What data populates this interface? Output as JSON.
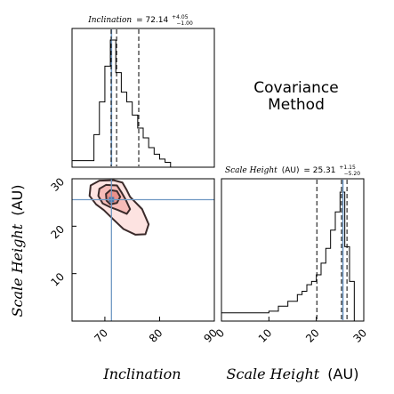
{
  "chart_data": [
    {
      "type": "histogram",
      "panel": "inclination-marginal",
      "title_param": "Inclination",
      "title_value": "= 72.14",
      "title_sup": "+4.05",
      "title_sub": "−1.00",
      "xlim": [
        64,
        90
      ],
      "median": 72.14,
      "quantiles": [
        71.14,
        76.19
      ],
      "truth": 71.2,
      "bins": [
        [
          64,
          66,
          4
        ],
        [
          66,
          68,
          4
        ],
        [
          68,
          69,
          20
        ],
        [
          69,
          70,
          40
        ],
        [
          70,
          71,
          62
        ],
        [
          71,
          72,
          78
        ],
        [
          72,
          73,
          58
        ],
        [
          73,
          74,
          46
        ],
        [
          74,
          75,
          40
        ],
        [
          75,
          76,
          32
        ],
        [
          76,
          77,
          24
        ],
        [
          77,
          78,
          18
        ],
        [
          78,
          79,
          12
        ],
        [
          79,
          80,
          8
        ],
        [
          80,
          81,
          5
        ],
        [
          81,
          82,
          3
        ],
        [
          82,
          90,
          0
        ]
      ]
    },
    {
      "type": "contour",
      "panel": "joint",
      "xlim": [
        64,
        90
      ],
      "ylim": [
        0,
        30
      ],
      "xticks": [
        "70",
        "80",
        "90"
      ],
      "yticks": [
        "10",
        "20",
        "30"
      ],
      "xlabel": "Inclination",
      "ylabel_param": "Scale Height",
      "ylabel_unit": "(AU)",
      "truth_x": 71.2,
      "truth_y": 25.6,
      "peak": [
        71.2,
        25.6
      ],
      "contour_colors": {
        "outer_fill": "#fde3e1",
        "inner_fill": "#f6bcb8",
        "core_fill": "#e9918b",
        "line": "#3a2a2a",
        "truth": "#6f98c3",
        "core_marker": "#4a78a8"
      },
      "contours": [
        {
          "level": "outer",
          "points": [
            [
              67.4,
              28.6
            ],
            [
              69.0,
              29.6
            ],
            [
              71.6,
              29.7
            ],
            [
              73.2,
              29.2
            ],
            [
              74.0,
              27.6
            ],
            [
              74.6,
              26.2
            ],
            [
              76.8,
              23.6
            ],
            [
              78.0,
              20.4
            ],
            [
              77.4,
              18.3
            ],
            [
              75.6,
              18.2
            ],
            [
              73.4,
              19.4
            ],
            [
              71.4,
              21.6
            ],
            [
              69.8,
              23.4
            ],
            [
              68.4,
              24.6
            ],
            [
              67.2,
              26.4
            ]
          ]
        },
        {
          "level": "inner",
          "points": [
            [
              69.0,
              27.9
            ],
            [
              70.2,
              28.7
            ],
            [
              72.2,
              28.6
            ],
            [
              73.0,
              27.2
            ],
            [
              73.8,
              25.6
            ],
            [
              74.6,
              23.6
            ],
            [
              74.0,
              22.6
            ],
            [
              72.4,
              23.4
            ],
            [
              71.0,
              24.0
            ],
            [
              69.6,
              24.8
            ],
            [
              68.8,
              26.4
            ]
          ]
        },
        {
          "level": "core",
          "points": [
            [
              70.2,
              26.8
            ],
            [
              71.0,
              27.6
            ],
            [
              72.2,
              27.4
            ],
            [
              72.8,
              26.2
            ],
            [
              72.2,
              24.9
            ],
            [
              71.0,
              24.6
            ],
            [
              70.3,
              25.4
            ]
          ]
        }
      ]
    },
    {
      "type": "histogram",
      "panel": "scale-height-marginal",
      "title_param": "Scale Height",
      "title_unit": "(AU)",
      "title_value": "= 25.31",
      "title_sup": "+1.15",
      "title_sub": "−5.20",
      "xlim": [
        0,
        30
      ],
      "xticks": [
        "0",
        "10",
        "20",
        "30"
      ],
      "xlabel_param": "Scale Height",
      "xlabel_unit": "(AU)",
      "median": 25.31,
      "quantiles": [
        20.11,
        26.46
      ],
      "truth": 25.6,
      "bins": [
        [
          0,
          5,
          5
        ],
        [
          5,
          10,
          5
        ],
        [
          10,
          12,
          6
        ],
        [
          12,
          14,
          9
        ],
        [
          14,
          16,
          12
        ],
        [
          16,
          17,
          16
        ],
        [
          17,
          18,
          18
        ],
        [
          18,
          19,
          22
        ],
        [
          19,
          20,
          24
        ],
        [
          20,
          21,
          28
        ],
        [
          21,
          22,
          35
        ],
        [
          22,
          23,
          44
        ],
        [
          23,
          24,
          55
        ],
        [
          24,
          25,
          66
        ],
        [
          25,
          26,
          78
        ],
        [
          26,
          27,
          45
        ],
        [
          27,
          28,
          24
        ],
        [
          28,
          30,
          0
        ]
      ]
    }
  ],
  "annotation": {
    "line1": "Covariance",
    "line2": "Method"
  }
}
